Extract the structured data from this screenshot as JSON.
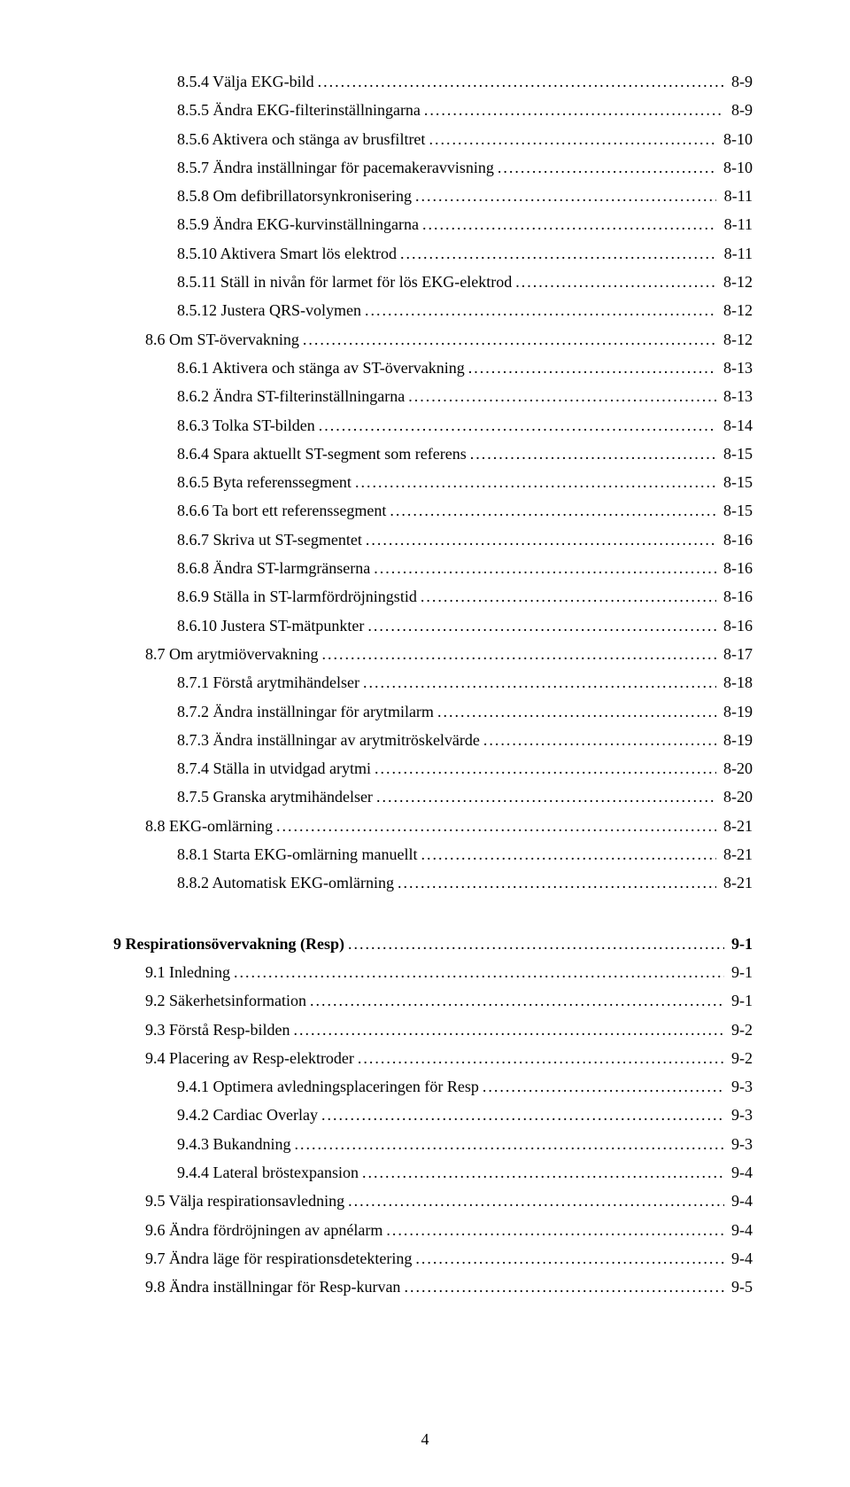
{
  "page_number": "4",
  "entries": [
    {
      "level": 3,
      "label": "8.5.4 Välja EKG-bild",
      "page": "8-9"
    },
    {
      "level": 3,
      "label": "8.5.5 Ändra EKG-filterinställningarna",
      "page": "8-9"
    },
    {
      "level": 3,
      "label": "8.5.6 Aktivera och stänga av brusfiltret",
      "page": "8-10"
    },
    {
      "level": 3,
      "label": "8.5.7 Ändra inställningar för pacemakeravvisning",
      "page": "8-10"
    },
    {
      "level": 3,
      "label": "8.5.8 Om defibrillatorsynkronisering",
      "page": "8-11"
    },
    {
      "level": 3,
      "label": "8.5.9 Ändra EKG-kurvinställningarna",
      "page": "8-11"
    },
    {
      "level": 3,
      "label": "8.5.10 Aktivera Smart lös elektrod",
      "page": "8-11"
    },
    {
      "level": 3,
      "label": "8.5.11 Ställ in nivån för larmet för lös EKG-elektrod",
      "page": "8-12"
    },
    {
      "level": 3,
      "label": "8.5.12 Justera QRS-volymen",
      "page": "8-12"
    },
    {
      "level": 2,
      "label": "8.6 Om ST-övervakning",
      "page": "8-12"
    },
    {
      "level": 3,
      "label": "8.6.1 Aktivera och stänga av ST-övervakning",
      "page": "8-13"
    },
    {
      "level": 3,
      "label": "8.6.2 Ändra ST-filterinställningarna",
      "page": "8-13"
    },
    {
      "level": 3,
      "label": "8.6.3 Tolka ST-bilden",
      "page": "8-14"
    },
    {
      "level": 3,
      "label": "8.6.4 Spara aktuellt ST-segment som referens",
      "page": "8-15"
    },
    {
      "level": 3,
      "label": "8.6.5 Byta referenssegment",
      "page": "8-15"
    },
    {
      "level": 3,
      "label": "8.6.6 Ta bort ett referenssegment",
      "page": "8-15"
    },
    {
      "level": 3,
      "label": "8.6.7 Skriva ut ST-segmentet",
      "page": "8-16"
    },
    {
      "level": 3,
      "label": "8.6.8 Ändra ST-larmgränserna",
      "page": "8-16"
    },
    {
      "level": 3,
      "label": "8.6.9 Ställa in ST-larmfördröjningstid",
      "page": "8-16"
    },
    {
      "level": 3,
      "label": "8.6.10 Justera ST-mätpunkter",
      "page": "8-16"
    },
    {
      "level": 2,
      "label": "8.7 Om arytmiövervakning",
      "page": "8-17"
    },
    {
      "level": 3,
      "label": "8.7.1 Förstå arytmihändelser",
      "page": "8-18"
    },
    {
      "level": 3,
      "label": "8.7.2 Ändra inställningar för arytmilarm",
      "page": "8-19"
    },
    {
      "level": 3,
      "label": "8.7.3 Ändra inställningar av arytmitröskelvärde",
      "page": "8-19"
    },
    {
      "level": 3,
      "label": "8.7.4 Ställa in utvidgad arytmi",
      "page": "8-20"
    },
    {
      "level": 3,
      "label": "8.7.5 Granska arytmihändelser",
      "page": "8-20"
    },
    {
      "level": 2,
      "label": "8.8 EKG-omlärning",
      "page": "8-21"
    },
    {
      "level": 3,
      "label": "8.8.1 Starta EKG-omlärning manuellt",
      "page": "8-21"
    },
    {
      "level": 3,
      "label": "8.8.2 Automatisk EKG-omlärning",
      "page": "8-21"
    },
    {
      "gap": true
    },
    {
      "level": 1,
      "bold": true,
      "label": "9 Respirationsövervakning (Resp)",
      "page": "9-1"
    },
    {
      "level": 2,
      "label": "9.1 Inledning",
      "page": "9-1"
    },
    {
      "level": 2,
      "label": "9.2 Säkerhetsinformation",
      "page": "9-1"
    },
    {
      "level": 2,
      "label": "9.3 Förstå Resp-bilden",
      "page": "9-2"
    },
    {
      "level": 2,
      "label": "9.4 Placering av Resp-elektroder",
      "page": "9-2"
    },
    {
      "level": 3,
      "label": "9.4.1 Optimera avledningsplaceringen för Resp",
      "page": "9-3"
    },
    {
      "level": 3,
      "label": "9.4.2 Cardiac Overlay",
      "page": "9-3"
    },
    {
      "level": 3,
      "label": "9.4.3 Bukandning",
      "page": "9-3"
    },
    {
      "level": 3,
      "label": "9.4.4 Lateral bröstexpansion",
      "page": "9-4"
    },
    {
      "level": 2,
      "label": "9.5 Välja respirationsavledning",
      "page": "9-4"
    },
    {
      "level": 2,
      "label": "9.6 Ändra fördröjningen av apnélarm",
      "page": "9-4"
    },
    {
      "level": 2,
      "label": "9.7 Ändra läge för respirationsdetektering",
      "page": "9-4"
    },
    {
      "level": 2,
      "label": "9.8 Ändra inställningar för Resp-kurvan",
      "page": "9-5"
    }
  ]
}
